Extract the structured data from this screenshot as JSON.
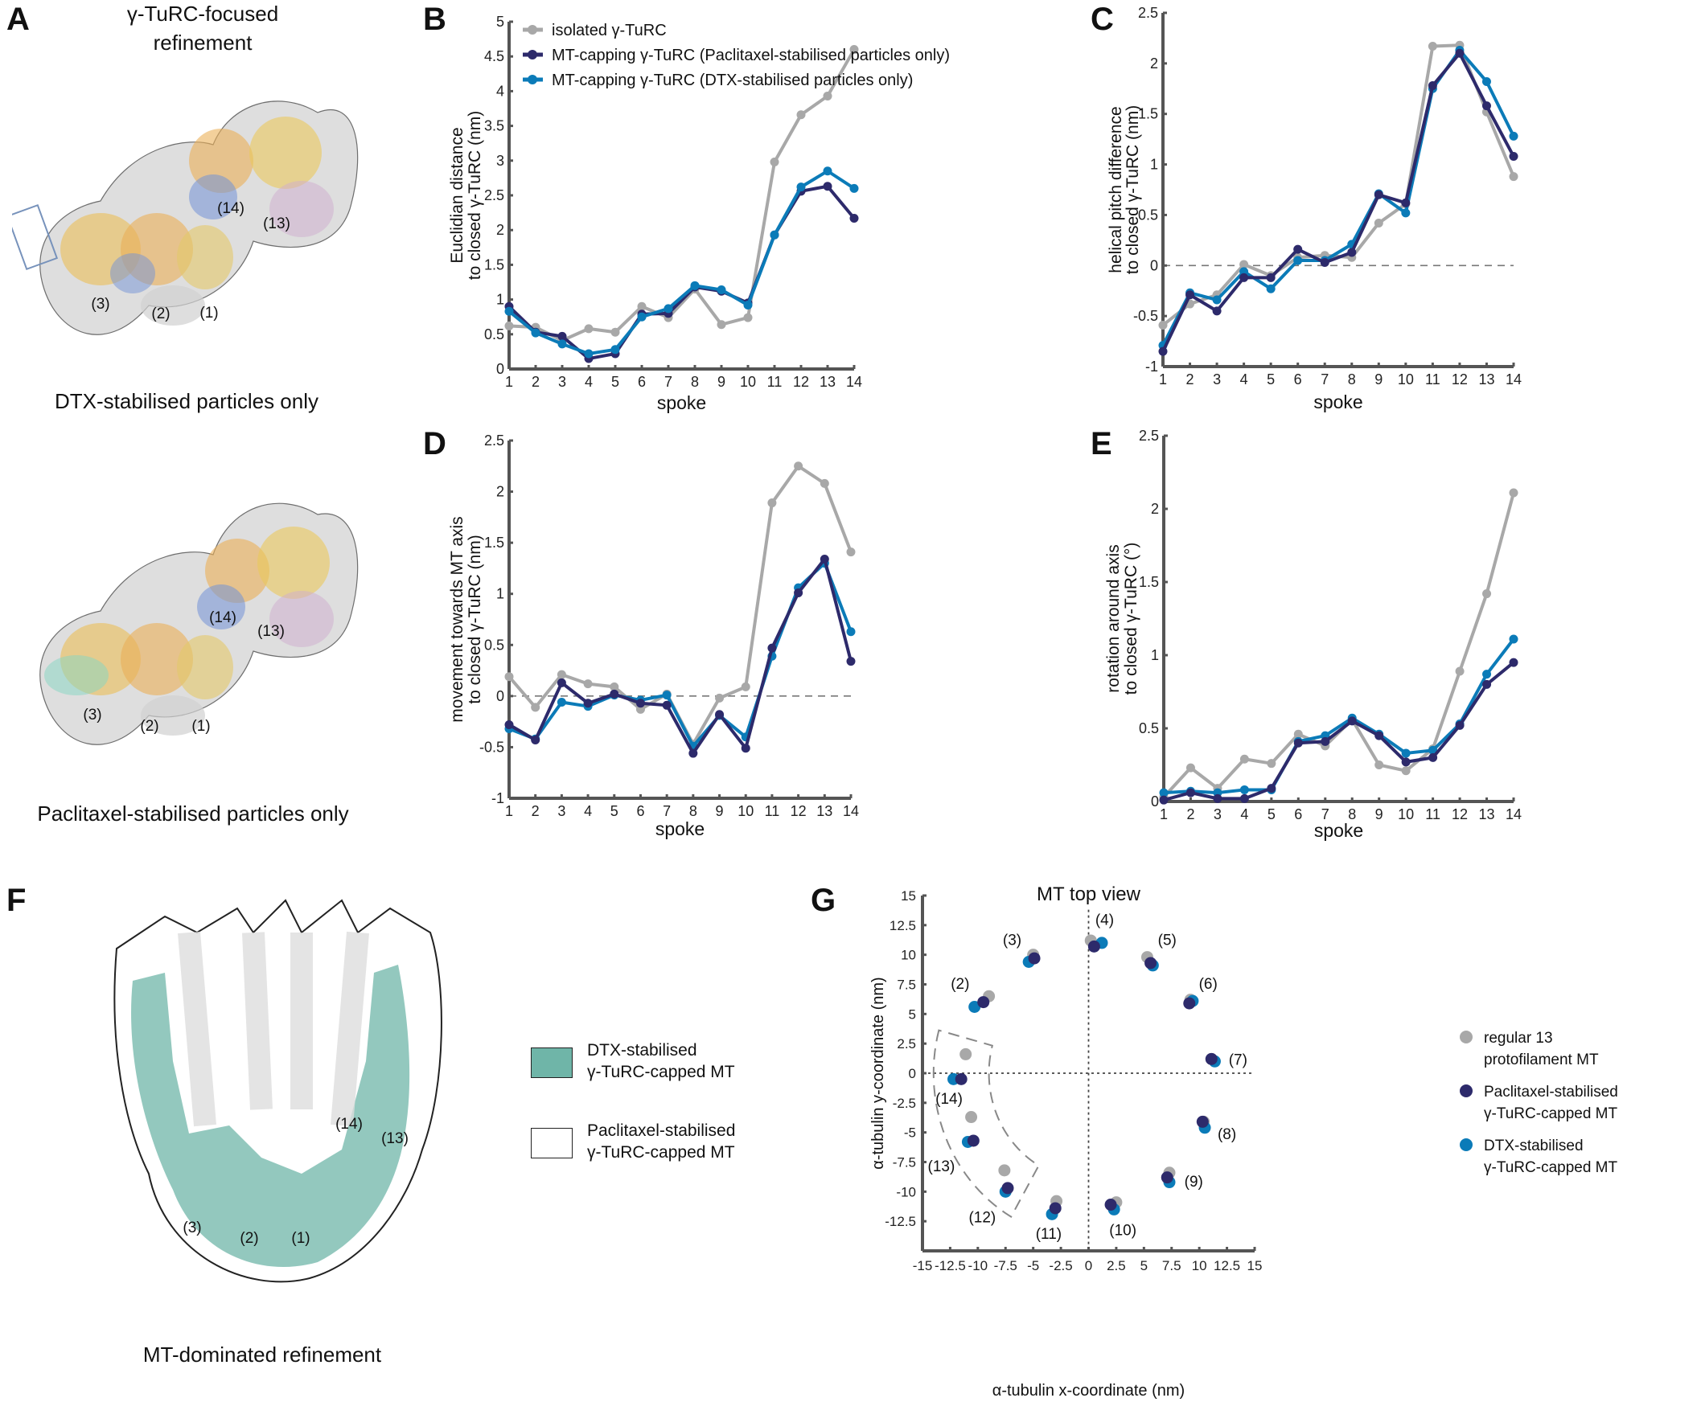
{
  "panel_letters": {
    "a": "A",
    "b": "B",
    "c": "C",
    "d": "D",
    "e": "E",
    "f": "F",
    "g": "G"
  },
  "panel_a": {
    "title_line1": "γ-TuRC-focused",
    "title_line2": "refinement",
    "top_caption": "DTX-stabilised particles only",
    "bottom_caption": "Paclitaxel-stabilised particles only",
    "top_labels": [
      "(14)",
      "(13)",
      "(3)",
      "(2)",
      "(1)"
    ],
    "bottom_labels": [
      "(14)",
      "(13)",
      "(3)",
      "(2)",
      "(1)"
    ]
  },
  "panel_f": {
    "caption": "MT-dominated refinement",
    "labels": [
      "(14)",
      "(13)",
      "(3)",
      "(2)",
      "(1)"
    ],
    "legend": [
      {
        "line1": "DTX-stabilised",
        "line2": "γ-TuRC-capped MT",
        "color": "#6fb5a8"
      },
      {
        "line1": "Paclitaxel-stabilised",
        "line2": "γ-TuRC-capped MT",
        "color": "#ffffff"
      }
    ]
  },
  "colors": {
    "isolated": "#a8a8a8",
    "paclitaxel": "#2d2a6b",
    "dtx": "#0b7bb8",
    "axis": "#555555"
  },
  "legend_b": [
    {
      "label": "isolated γ-TuRC",
      "series": "isolated"
    },
    {
      "label": "MT-capping γ-TuRC (Paclitaxel-stabilised particles only)",
      "series": "paclitaxel"
    },
    {
      "label": "MT-capping γ-TuRC (DTX-stabilised particles only)",
      "series": "dtx"
    }
  ],
  "chart_data": [
    {
      "id": "B",
      "type": "line",
      "xlabel": "spoke",
      "ylabel": [
        "Euclidian distance",
        "to closed γ-TuRC (nm)"
      ],
      "x": [
        1,
        2,
        3,
        4,
        5,
        6,
        7,
        8,
        9,
        10,
        11,
        12,
        13,
        14
      ],
      "ylim": [
        0,
        5
      ],
      "yticks": [
        "0",
        "0.5",
        "1",
        "1.5",
        "2",
        "2.5",
        "3",
        "3.5",
        "4",
        "4.5",
        "5"
      ],
      "zero_line": false,
      "legend": "top-left",
      "series": [
        {
          "key": "isolated",
          "name": "isolated γ-TuRC",
          "values": [
            0.62,
            0.6,
            0.41,
            0.58,
            0.53,
            0.9,
            0.74,
            1.15,
            0.64,
            0.74,
            2.98,
            3.66,
            3.93,
            4.6
          ]
        },
        {
          "key": "paclitaxel",
          "name": "MT-capping γ-TuRC (Paclitaxel-stabilised particles only)",
          "values": [
            0.9,
            0.53,
            0.47,
            0.15,
            0.22,
            0.79,
            0.8,
            1.18,
            1.12,
            0.95,
            1.93,
            2.56,
            2.63,
            2.17
          ]
        },
        {
          "key": "dtx",
          "name": "MT-capping γ-TuRC (DTX-stabilised particles only)",
          "values": [
            0.83,
            0.52,
            0.36,
            0.22,
            0.28,
            0.75,
            0.87,
            1.2,
            1.14,
            0.92,
            1.93,
            2.62,
            2.85,
            2.6
          ]
        }
      ]
    },
    {
      "id": "C",
      "type": "line",
      "xlabel": "spoke",
      "ylabel": [
        "helical pitch difference",
        "to closed γ-TuRC (nm)"
      ],
      "x": [
        1,
        2,
        3,
        4,
        5,
        6,
        7,
        8,
        9,
        10,
        11,
        12,
        13,
        14
      ],
      "ylim": [
        -1,
        2.5
      ],
      "yticks": [
        "-1",
        "-0.5",
        "0",
        "0.5",
        "1",
        "1.5",
        "2",
        "2.5"
      ],
      "zero_line": true,
      "series": [
        {
          "key": "isolated",
          "name": "isolated γ-TuRC",
          "values": [
            -0.59,
            -0.38,
            -0.29,
            0.01,
            -0.1,
            0.08,
            0.1,
            0.08,
            0.42,
            0.61,
            2.17,
            2.18,
            1.52,
            0.88
          ]
        },
        {
          "key": "dtx",
          "name": "MT-capping γ-TuRC (DTX-stabilised particles only)",
          "values": [
            -0.79,
            -0.27,
            -0.34,
            -0.06,
            -0.23,
            0.05,
            0.05,
            0.21,
            0.71,
            0.52,
            1.75,
            2.13,
            1.82,
            1.28
          ]
        },
        {
          "key": "paclitaxel",
          "name": "MT-capping γ-TuRC (Paclitaxel-stabilised particles only)",
          "values": [
            -0.85,
            -0.29,
            -0.45,
            -0.12,
            -0.12,
            0.16,
            0.03,
            0.13,
            0.7,
            0.62,
            1.78,
            2.1,
            1.58,
            1.08
          ]
        }
      ]
    },
    {
      "id": "D",
      "type": "line",
      "xlabel": "spoke",
      "ylabel": [
        "movement towards MT axis",
        "to closed γ-TuRC (nm)"
      ],
      "x": [
        1,
        2,
        3,
        4,
        5,
        6,
        7,
        8,
        9,
        10,
        11,
        12,
        13,
        14
      ],
      "ylim": [
        -1,
        2.5
      ],
      "yticks": [
        "-1",
        "-0.5",
        "0",
        "0.5",
        "1",
        "1.5",
        "2",
        "2.5"
      ],
      "zero_line": true,
      "series": [
        {
          "key": "isolated",
          "name": "isolated γ-TuRC",
          "values": [
            0.19,
            -0.11,
            0.21,
            0.12,
            0.09,
            -0.13,
            0.02,
            -0.47,
            -0.02,
            0.09,
            1.89,
            2.25,
            2.08,
            1.41
          ]
        },
        {
          "key": "dtx",
          "name": "MT-capping γ-TuRC (DTX-stabilised particles only)",
          "values": [
            -0.32,
            -0.42,
            -0.06,
            -0.1,
            0.01,
            -0.04,
            0.01,
            -0.49,
            -0.19,
            -0.4,
            0.39,
            1.06,
            1.3,
            0.63
          ]
        },
        {
          "key": "paclitaxel",
          "name": "MT-capping γ-TuRC (Paclitaxel-stabilised particles only)",
          "values": [
            -0.28,
            -0.43,
            0.13,
            -0.07,
            0.02,
            -0.07,
            -0.09,
            -0.56,
            -0.18,
            -0.51,
            0.47,
            1.01,
            1.34,
            0.34
          ]
        }
      ]
    },
    {
      "id": "E",
      "type": "line",
      "xlabel": "spoke",
      "ylabel": [
        "rotation around axis",
        "to closed γ-TuRC (°)"
      ],
      "x": [
        1,
        2,
        3,
        4,
        5,
        6,
        7,
        8,
        9,
        10,
        11,
        12,
        13,
        14
      ],
      "ylim": [
        0,
        2.5
      ],
      "yticks": [
        "0",
        "0.5",
        "1",
        "1.5",
        "2",
        "2.5"
      ],
      "zero_line": false,
      "series": [
        {
          "key": "isolated",
          "name": "isolated γ-TuRC",
          "values": [
            0.03,
            0.23,
            0.09,
            0.29,
            0.26,
            0.46,
            0.38,
            0.56,
            0.25,
            0.21,
            0.36,
            0.89,
            1.42,
            2.11
          ]
        },
        {
          "key": "dtx",
          "name": "MT-capping γ-TuRC (DTX-stabilised particles only)",
          "values": [
            0.06,
            0.07,
            0.06,
            0.08,
            0.08,
            0.41,
            0.45,
            0.57,
            0.46,
            0.33,
            0.35,
            0.53,
            0.87,
            1.11
          ]
        },
        {
          "key": "paclitaxel",
          "name": "MT-capping γ-TuRC (Paclitaxel-stabilised particles only)",
          "values": [
            0.01,
            0.06,
            0.02,
            0.02,
            0.09,
            0.4,
            0.41,
            0.55,
            0.45,
            0.27,
            0.3,
            0.52,
            0.8,
            0.95
          ]
        }
      ]
    },
    {
      "id": "G",
      "type": "scatter",
      "title": "MT top view",
      "xlabel": "α-tubulin x-coordinate (nm)",
      "ylabel": "α-tubulin y-coordinate (nm)",
      "xlim": [
        -15,
        15
      ],
      "ylim": [
        -15,
        15
      ],
      "xticks": [
        "-15",
        "-12.5",
        "-10",
        "-7.5",
        "-5",
        "-2.5",
        "0",
        "2.5",
        "5",
        "7.5",
        "10",
        "12.5",
        "15"
      ],
      "yticks": [
        "-12.5",
        "-10",
        "-7.5",
        "-5",
        "-2.5",
        "0",
        "2.5",
        "5",
        "7.5",
        "10",
        "12.5",
        "15"
      ],
      "origin_lines": "dotted",
      "legend": "right",
      "point_labels": [
        "(2)",
        "(3)",
        "(4)",
        "(5)",
        "(6)",
        "(7)",
        "(8)",
        "(9)",
        "(10)",
        "(11)",
        "(12)",
        "(13)",
        "(14)"
      ],
      "highlight_region": {
        "type": "annular-sector",
        "style": "dashed",
        "r_inner": 9,
        "r_outer": 14,
        "angle_start_deg": 165,
        "angle_end_deg": 240
      },
      "series": [
        {
          "key": "isolated",
          "name": "regular 13 protofilament MT",
          "legend_lines": [
            "regular 13",
            "protofilament MT"
          ],
          "points": [
            [
              -9.0,
              6.5
            ],
            [
              -5.0,
              10.0
            ],
            [
              0.2,
              11.2
            ],
            [
              5.3,
              9.8
            ],
            [
              9.2,
              6.2
            ],
            [
              11.1,
              1.2
            ],
            [
              10.4,
              -4.1
            ],
            [
              7.3,
              -8.4
            ],
            [
              2.5,
              -10.9
            ],
            [
              -2.9,
              -10.8
            ],
            [
              -7.6,
              -8.2
            ],
            [
              -10.6,
              -3.7
            ],
            [
              -11.1,
              1.6
            ]
          ]
        },
        {
          "key": "dtx",
          "name": "DTX-stabilised γ-TuRC-capped MT",
          "legend_lines": [
            "DTX-stabilised",
            "γ-TuRC-capped MT"
          ],
          "points": [
            [
              -10.3,
              5.6
            ],
            [
              -5.4,
              9.4
            ],
            [
              1.2,
              11.0
            ],
            [
              5.8,
              9.1
            ],
            [
              9.4,
              6.1
            ],
            [
              11.4,
              1.0
            ],
            [
              10.5,
              -4.6
            ],
            [
              7.3,
              -9.2
            ],
            [
              2.3,
              -11.5
            ],
            [
              -3.3,
              -11.9
            ],
            [
              -7.5,
              -10.0
            ],
            [
              -10.9,
              -5.8
            ],
            [
              -12.2,
              -0.5
            ]
          ]
        },
        {
          "key": "paclitaxel",
          "name": "Paclitaxel-stabilised γ-TuRC-capped MT",
          "legend_lines": [
            "Paclitaxel-stabilised",
            "γ-TuRC-capped MT"
          ],
          "points": [
            [
              -9.5,
              6.0
            ],
            [
              -4.9,
              9.7
            ],
            [
              0.5,
              10.7
            ],
            [
              5.6,
              9.3
            ],
            [
              9.1,
              5.9
            ],
            [
              11.1,
              1.2
            ],
            [
              10.3,
              -4.1
            ],
            [
              7.1,
              -8.8
            ],
            [
              2.0,
              -11.1
            ],
            [
              -3.0,
              -11.4
            ],
            [
              -7.3,
              -9.7
            ],
            [
              -10.4,
              -5.7
            ],
            [
              -11.5,
              -0.5
            ]
          ]
        }
      ],
      "legend_order": [
        "isolated",
        "paclitaxel",
        "dtx"
      ]
    }
  ]
}
